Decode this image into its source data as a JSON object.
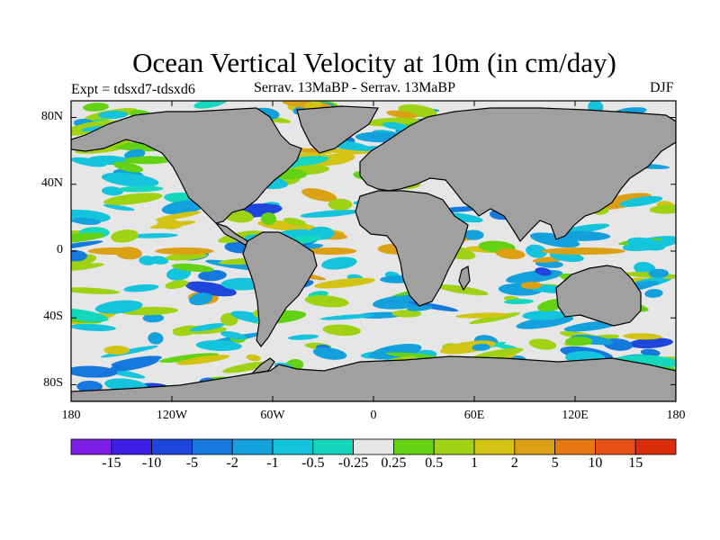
{
  "title": "Ocean Vertical Velocity at 10m (in cm/day)",
  "experiment": "Expt = tdsxd7-tdsxd6",
  "comparison": "Serrav.   13MaBP - Serrav.   13MaBP",
  "season": "DJF",
  "lat_ticks": [
    {
      "label": "80N",
      "value": 80
    },
    {
      "label": "40N",
      "value": 40
    },
    {
      "label": "0",
      "value": 0
    },
    {
      "label": "40S",
      "value": -40
    },
    {
      "label": "80S",
      "value": -80
    }
  ],
  "lon_ticks": [
    {
      "label": "180",
      "value": -180
    },
    {
      "label": "120W",
      "value": -120
    },
    {
      "label": "60W",
      "value": -60
    },
    {
      "label": "0",
      "value": 0
    },
    {
      "label": "60E",
      "value": 60
    },
    {
      "label": "120E",
      "value": 120
    },
    {
      "label": "180",
      "value": 180
    }
  ],
  "colorbar": {
    "colors": [
      "#7d1ee6",
      "#3c1ee6",
      "#1e46dc",
      "#1478dc",
      "#14a0dc",
      "#14c3dc",
      "#14d7be",
      "#e6e6e6",
      "#64d214",
      "#a0d214",
      "#d2c314",
      "#dca014",
      "#e67814",
      "#e65014",
      "#dc2d0a"
    ],
    "labels": [
      "-15",
      "-10",
      "-5",
      "-2",
      "-1",
      "-0.5",
      "-0.25",
      "0.25",
      "0.5",
      "1",
      "2",
      "5",
      "10",
      "15"
    ]
  },
  "land_color": "#a0a0a0",
  "ocean_background": "#e6e6e6"
}
